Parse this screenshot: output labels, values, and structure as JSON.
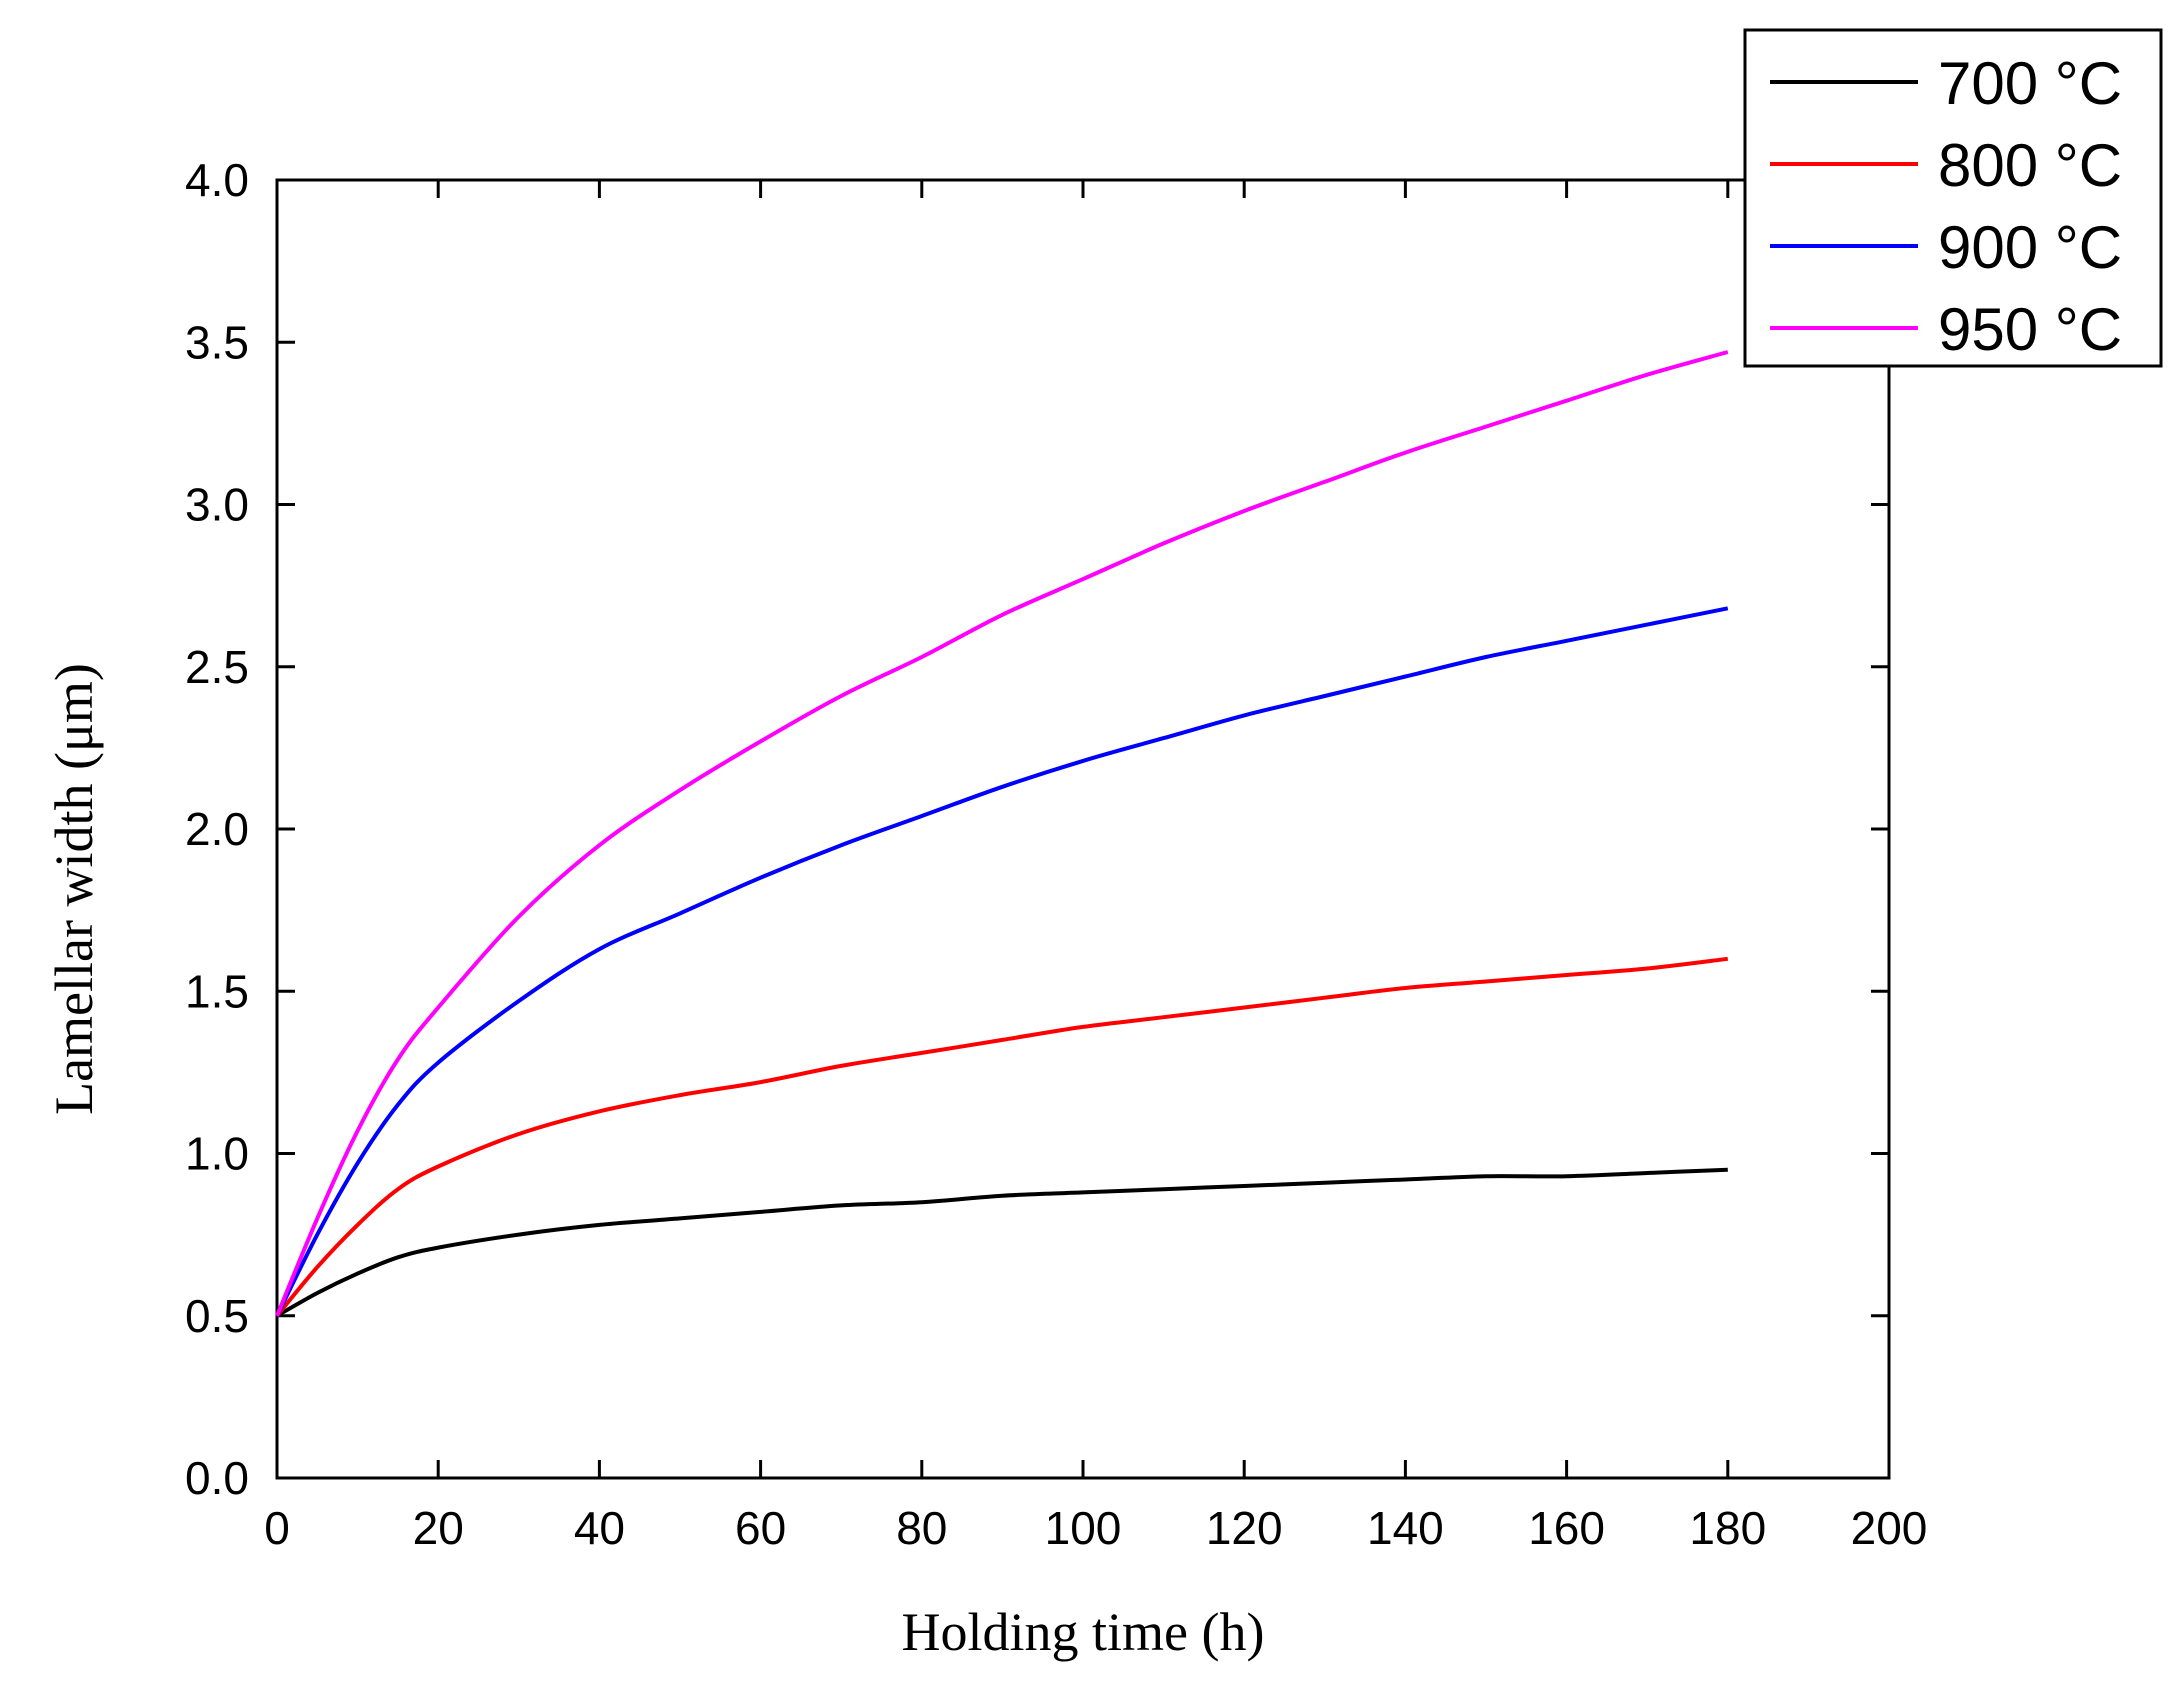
{
  "chart_data": {
    "type": "line",
    "title": "",
    "xlabel": "Holding time (h)",
    "ylabel": "Lamellar width (μm)",
    "xlim": [
      0,
      200
    ],
    "ylim": [
      0.0,
      4.0
    ],
    "xticks": [
      0,
      20,
      40,
      60,
      80,
      100,
      120,
      140,
      160,
      180,
      200
    ],
    "xtick_labels": [
      "0",
      "20",
      "40",
      "60",
      "80",
      "100",
      "120",
      "140",
      "160",
      "180",
      "200"
    ],
    "yticks": [
      0.0,
      0.5,
      1.0,
      1.5,
      2.0,
      2.5,
      3.0,
      3.5,
      4.0
    ],
    "ytick_labels": [
      "0.0",
      "0.5",
      "1.0",
      "1.5",
      "2.0",
      "2.5",
      "3.0",
      "3.5",
      "4.0"
    ],
    "grid": false,
    "legend_position": "top-right",
    "x": [
      0,
      5,
      10,
      15,
      20,
      30,
      40,
      50,
      60,
      70,
      80,
      90,
      100,
      110,
      120,
      130,
      140,
      150,
      160,
      170,
      180
    ],
    "series": [
      {
        "name": "700 °C",
        "color": "#000000",
        "values": [
          0.5,
          0.57,
          0.63,
          0.68,
          0.71,
          0.75,
          0.78,
          0.8,
          0.82,
          0.84,
          0.85,
          0.87,
          0.88,
          0.89,
          0.9,
          0.91,
          0.92,
          0.93,
          0.93,
          0.94,
          0.95
        ]
      },
      {
        "name": "800 °C",
        "color": "#ff0000",
        "values": [
          0.5,
          0.65,
          0.78,
          0.89,
          0.96,
          1.06,
          1.13,
          1.18,
          1.22,
          1.27,
          1.31,
          1.35,
          1.39,
          1.42,
          1.45,
          1.48,
          1.51,
          1.53,
          1.55,
          1.57,
          1.6
        ]
      },
      {
        "name": "900 °C",
        "color": "#0000ff",
        "values": [
          0.5,
          0.75,
          0.97,
          1.15,
          1.28,
          1.47,
          1.63,
          1.74,
          1.85,
          1.95,
          2.04,
          2.13,
          2.21,
          2.28,
          2.35,
          2.41,
          2.47,
          2.53,
          2.58,
          2.63,
          2.68
        ]
      },
      {
        "name": "950 °C",
        "color": "#ff00ff",
        "values": [
          0.5,
          0.8,
          1.07,
          1.29,
          1.45,
          1.73,
          1.95,
          2.12,
          2.27,
          2.41,
          2.53,
          2.66,
          2.77,
          2.88,
          2.98,
          3.07,
          3.16,
          3.24,
          3.32,
          3.4,
          3.47
        ]
      }
    ]
  }
}
